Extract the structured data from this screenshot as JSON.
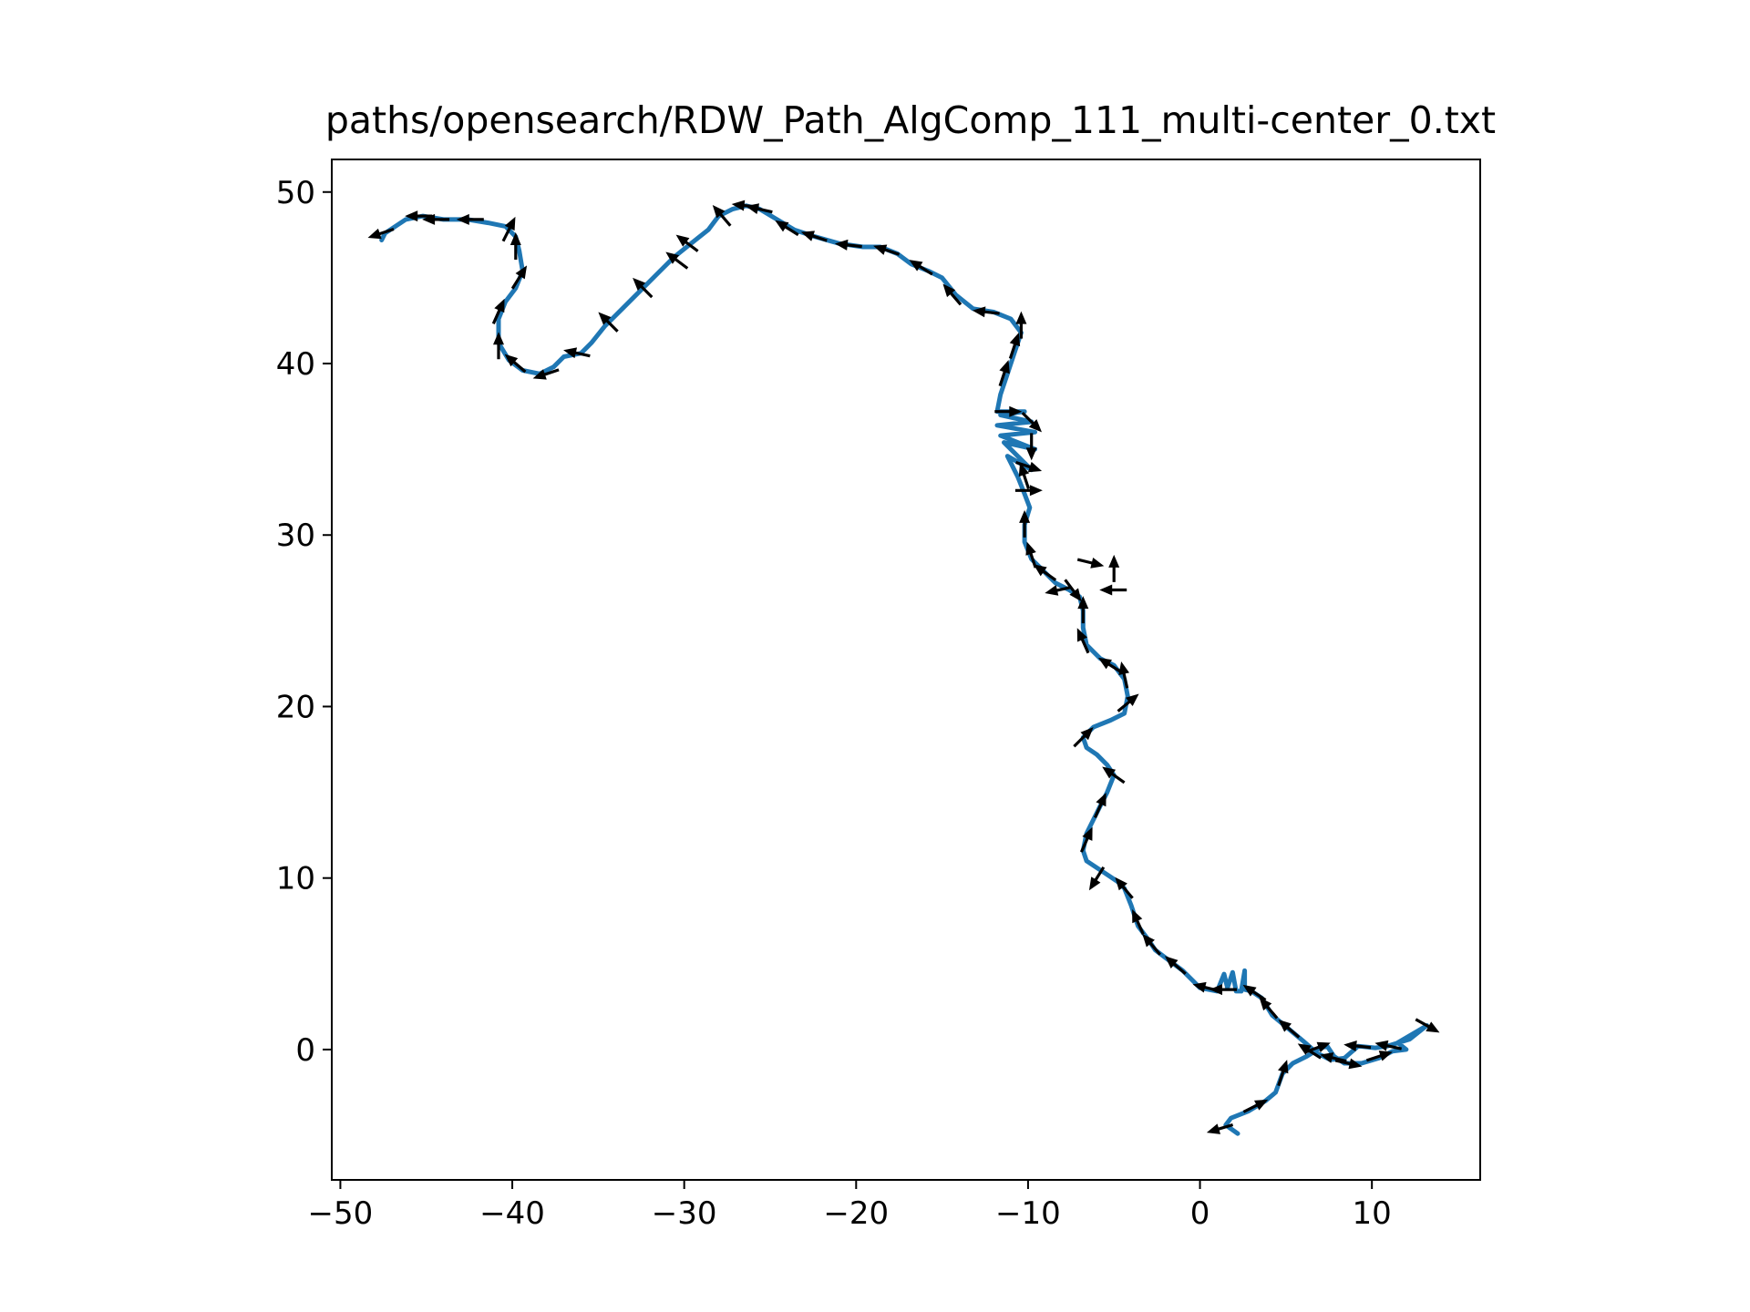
{
  "chart_data": {
    "type": "line",
    "title": "paths/opensearch/RDW_Path_AlgComp_111_multi-center_0.txt",
    "xlabel": "",
    "ylabel": "",
    "xlim": [
      -50.5,
      16.3
    ],
    "ylim": [
      -7.6,
      51.9
    ],
    "xticks": [
      -50,
      -40,
      -30,
      -20,
      -10,
      0,
      10
    ],
    "xtick_labels": [
      "−50",
      "−40",
      "−30",
      "−20",
      "−10",
      "0",
      "10"
    ],
    "yticks": [
      0,
      10,
      20,
      30,
      40,
      50
    ],
    "ytick_labels": [
      "0",
      "10",
      "20",
      "30",
      "40",
      "50"
    ],
    "grid": false,
    "line_color": "#1f77b4",
    "arrow_color": "#000000",
    "path": [
      [
        2.2,
        -4.9
      ],
      [
        1.5,
        -4.4
      ],
      [
        1.8,
        -4.0
      ],
      [
        2.8,
        -3.6
      ],
      [
        3.8,
        -3.0
      ],
      [
        4.4,
        -2.5
      ],
      [
        4.8,
        -1.4
      ],
      [
        5.4,
        -0.8
      ],
      [
        6.2,
        -0.4
      ],
      [
        7.0,
        0.1
      ],
      [
        7.4,
        0.2
      ],
      [
        7.8,
        -0.4
      ],
      [
        8.4,
        -0.8
      ],
      [
        9.4,
        -0.8
      ],
      [
        10.4,
        -0.5
      ],
      [
        11.2,
        -0.1
      ],
      [
        12.0,
        0.0
      ],
      [
        11.5,
        0.4
      ],
      [
        13.2,
        1.4
      ],
      [
        12.2,
        0.6
      ],
      [
        10.9,
        0.2
      ],
      [
        10.2,
        0.1
      ],
      [
        9.2,
        0.2
      ],
      [
        8.4,
        -0.5
      ],
      [
        7.6,
        -0.6
      ],
      [
        6.8,
        -0.2
      ],
      [
        6.0,
        0.5
      ],
      [
        5.4,
        1.0
      ],
      [
        4.8,
        1.5
      ],
      [
        4.2,
        2.0
      ],
      [
        3.6,
        3.0
      ],
      [
        3.0,
        3.4
      ],
      [
        2.6,
        3.5
      ],
      [
        2.6,
        4.6
      ],
      [
        2.4,
        3.4
      ],
      [
        2.1,
        3.4
      ],
      [
        1.9,
        4.5
      ],
      [
        1.6,
        3.6
      ],
      [
        1.4,
        4.4
      ],
      [
        1.0,
        3.4
      ],
      [
        0.0,
        3.6
      ],
      [
        -0.4,
        4.0
      ],
      [
        -1.0,
        4.6
      ],
      [
        -1.8,
        5.2
      ],
      [
        -2.6,
        5.8
      ],
      [
        -3.0,
        6.4
      ],
      [
        -3.6,
        7.2
      ],
      [
        -4.0,
        8.4
      ],
      [
        -4.4,
        9.4
      ],
      [
        -4.8,
        9.8
      ],
      [
        -5.4,
        10.2
      ],
      [
        -6.0,
        10.6
      ],
      [
        -6.6,
        11.0
      ],
      [
        -6.8,
        11.6
      ],
      [
        -6.6,
        12.6
      ],
      [
        -6.2,
        13.4
      ],
      [
        -5.8,
        14.2
      ],
      [
        -5.4,
        15.0
      ],
      [
        -5.0,
        16.0
      ],
      [
        -5.4,
        16.6
      ],
      [
        -6.0,
        17.2
      ],
      [
        -6.6,
        17.6
      ],
      [
        -6.8,
        18.2
      ],
      [
        -6.2,
        18.8
      ],
      [
        -5.2,
        19.2
      ],
      [
        -4.4,
        19.6
      ],
      [
        -4.2,
        20.6
      ],
      [
        -4.4,
        21.6
      ],
      [
        -5.0,
        22.4
      ],
      [
        -5.8,
        22.8
      ],
      [
        -6.6,
        23.6
      ],
      [
        -6.8,
        24.6
      ],
      [
        -6.8,
        25.6
      ],
      [
        -7.0,
        26.4
      ],
      [
        -7.6,
        26.8
      ],
      [
        -8.4,
        27.2
      ],
      [
        -9.0,
        27.8
      ],
      [
        -9.8,
        28.6
      ],
      [
        -10.2,
        29.6
      ],
      [
        -10.2,
        30.6
      ],
      [
        -9.9,
        31.6
      ],
      [
        -10.2,
        32.4
      ],
      [
        -10.6,
        33.4
      ],
      [
        -11.2,
        34.6
      ],
      [
        -9.8,
        33.8
      ],
      [
        -11.4,
        35.4
      ],
      [
        -9.6,
        35.0
      ],
      [
        -11.6,
        35.8
      ],
      [
        -9.6,
        36.0
      ],
      [
        -11.8,
        36.4
      ],
      [
        -9.8,
        36.6
      ],
      [
        -11.6,
        37.0
      ],
      [
        -10.2,
        37.2
      ],
      [
        -11.8,
        37.2
      ],
      [
        -11.6,
        38.2
      ],
      [
        -11.2,
        39.4
      ],
      [
        -10.8,
        40.6
      ],
      [
        -10.4,
        41.8
      ],
      [
        -11.0,
        42.6
      ],
      [
        -12.0,
        43.0
      ],
      [
        -13.2,
        43.2
      ],
      [
        -14.2,
        44.0
      ],
      [
        -15.0,
        45.0
      ],
      [
        -15.8,
        45.4
      ],
      [
        -16.8,
        45.8
      ],
      [
        -17.6,
        46.4
      ],
      [
        -18.6,
        46.8
      ],
      [
        -19.6,
        46.8
      ],
      [
        -21.0,
        47.0
      ],
      [
        -22.4,
        47.4
      ],
      [
        -23.6,
        47.8
      ],
      [
        -24.6,
        48.4
      ],
      [
        -25.6,
        49.0
      ],
      [
        -26.4,
        49.2
      ],
      [
        -27.2,
        49.0
      ],
      [
        -28.0,
        48.6
      ],
      [
        -28.6,
        47.8
      ],
      [
        -29.6,
        47.0
      ],
      [
        -30.6,
        46.2
      ],
      [
        -31.2,
        45.6
      ],
      [
        -32.0,
        44.8
      ],
      [
        -32.8,
        44.0
      ],
      [
        -33.6,
        43.2
      ],
      [
        -34.6,
        42.2
      ],
      [
        -35.4,
        41.2
      ],
      [
        -36.0,
        40.6
      ],
      [
        -37.0,
        40.4
      ],
      [
        -37.6,
        39.8
      ],
      [
        -38.4,
        39.4
      ],
      [
        -39.4,
        39.6
      ],
      [
        -40.2,
        40.2
      ],
      [
        -40.8,
        41.2
      ],
      [
        -40.8,
        42.6
      ],
      [
        -40.4,
        43.6
      ],
      [
        -39.8,
        44.4
      ],
      [
        -39.4,
        45.4
      ],
      [
        -39.6,
        46.6
      ],
      [
        -39.8,
        47.4
      ],
      [
        -40.4,
        48.0
      ],
      [
        -41.4,
        48.2
      ],
      [
        -42.6,
        48.4
      ],
      [
        -44.0,
        48.4
      ],
      [
        -45.2,
        48.6
      ],
      [
        -46.2,
        48.4
      ],
      [
        -46.8,
        48.0
      ],
      [
        -47.4,
        47.6
      ],
      [
        -47.6,
        47.2
      ]
    ],
    "arrows": [
      [
        1.2,
        -4.6,
        -1.0,
        -0.3
      ],
      [
        3.2,
        -3.3,
        0.8,
        0.4
      ],
      [
        4.8,
        -1.4,
        0.3,
        0.9
      ],
      [
        6.8,
        0.1,
        0.8,
        0.3
      ],
      [
        8.6,
        -0.8,
        0.9,
        -0.2
      ],
      [
        10.4,
        -0.4,
        0.9,
        0.3
      ],
      [
        13.2,
        1.4,
        0.9,
        -0.5
      ],
      [
        11.0,
        0.2,
        -0.9,
        0.2
      ],
      [
        9.2,
        0.2,
        -0.9,
        0.1
      ],
      [
        7.8,
        -0.5,
        -0.8,
        0.2
      ],
      [
        6.4,
        -0.1,
        -0.8,
        0.5
      ],
      [
        5.2,
        1.2,
        -0.7,
        0.6
      ],
      [
        4.0,
        2.4,
        -0.6,
        0.7
      ],
      [
        3.2,
        3.3,
        -0.6,
        0.4
      ],
      [
        1.4,
        3.5,
        -0.8,
        0.0
      ],
      [
        0.4,
        3.6,
        -0.8,
        0.2
      ],
      [
        -1.4,
        4.9,
        -0.7,
        0.6
      ],
      [
        -2.8,
        6.1,
        -0.6,
        0.7
      ],
      [
        -3.6,
        7.4,
        -0.4,
        0.9
      ],
      [
        -4.4,
        9.4,
        -0.5,
        0.6
      ],
      [
        -6.0,
        10.0,
        -0.5,
        -0.8
      ],
      [
        -6.6,
        12.2,
        0.4,
        0.9
      ],
      [
        -5.8,
        14.2,
        0.4,
        0.9
      ],
      [
        -5.0,
        16.0,
        -0.7,
        0.5
      ],
      [
        -6.8,
        18.2,
        0.6,
        0.6
      ],
      [
        -4.2,
        20.2,
        0.6,
        0.5
      ],
      [
        -4.4,
        21.8,
        -0.2,
        0.9
      ],
      [
        -5.2,
        22.4,
        -0.8,
        0.5
      ],
      [
        -6.8,
        23.8,
        -0.4,
        0.9
      ],
      [
        -6.8,
        25.6,
        0.0,
        1.0
      ],
      [
        -7.4,
        26.8,
        0.6,
        -0.8
      ],
      [
        -8.2,
        26.8,
        -0.9,
        -0.2
      ],
      [
        -5.0,
        26.8,
        -0.9,
        0.0
      ],
      [
        -5.0,
        28.0,
        0.0,
        0.9
      ],
      [
        -6.4,
        28.4,
        0.8,
        -0.2
      ],
      [
        -9.0,
        27.8,
        -0.7,
        0.5
      ],
      [
        -9.8,
        28.8,
        -0.3,
        0.9
      ],
      [
        -10.2,
        30.6,
        0.0,
        0.9
      ],
      [
        -10.0,
        32.6,
        0.9,
        0.0
      ],
      [
        -10.2,
        33.4,
        -0.3,
        0.9
      ],
      [
        -10.0,
        34.0,
        0.9,
        -0.3
      ],
      [
        -9.8,
        35.2,
        0.0,
        -0.9
      ],
      [
        -9.8,
        36.6,
        0.6,
        -0.6
      ],
      [
        -11.2,
        37.2,
        0.9,
        0.0
      ],
      [
        -11.4,
        39.4,
        0.3,
        0.9
      ],
      [
        -10.8,
        41.0,
        0.3,
        0.9
      ],
      [
        -10.4,
        42.2,
        0.0,
        0.9
      ],
      [
        -12.4,
        43.0,
        -0.9,
        0.1
      ],
      [
        -14.4,
        44.0,
        -0.6,
        0.7
      ],
      [
        -16.2,
        45.6,
        -0.8,
        0.5
      ],
      [
        -18.2,
        46.6,
        -0.9,
        0.3
      ],
      [
        -20.4,
        46.9,
        -0.9,
        0.1
      ],
      [
        -22.4,
        47.4,
        -0.9,
        0.3
      ],
      [
        -24.0,
        47.9,
        -0.8,
        0.5
      ],
      [
        -25.6,
        49.0,
        -0.9,
        0.2
      ],
      [
        -26.4,
        49.2,
        -0.9,
        0.1
      ],
      [
        -27.8,
        48.6,
        -0.6,
        0.7
      ],
      [
        -29.8,
        47.0,
        -0.8,
        0.6
      ],
      [
        -30.4,
        46.0,
        -0.8,
        0.6
      ],
      [
        -32.4,
        44.4,
        -0.7,
        0.7
      ],
      [
        -34.4,
        42.4,
        -0.7,
        0.7
      ],
      [
        -36.2,
        40.6,
        -0.9,
        0.2
      ],
      [
        -38.0,
        39.4,
        -0.9,
        -0.3
      ],
      [
        -39.8,
        40.0,
        -0.7,
        0.6
      ],
      [
        -40.8,
        41.0,
        0.0,
        0.9
      ],
      [
        -40.8,
        43.0,
        0.4,
        0.9
      ],
      [
        -39.6,
        45.0,
        0.5,
        0.8
      ],
      [
        -39.8,
        46.8,
        0.0,
        0.9
      ],
      [
        -40.2,
        47.8,
        0.4,
        0.8
      ],
      [
        -42.4,
        48.4,
        -0.9,
        0.0
      ],
      [
        -44.4,
        48.4,
        -0.9,
        0.0
      ],
      [
        -45.4,
        48.6,
        -0.9,
        0.0
      ],
      [
        -47.6,
        47.6,
        -0.9,
        -0.3
      ]
    ]
  }
}
